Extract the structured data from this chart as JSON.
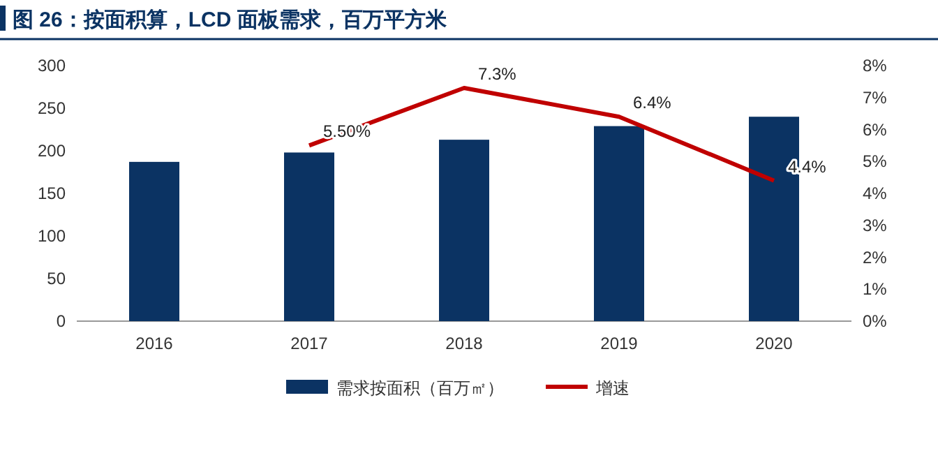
{
  "chart_data": {
    "type": "bar",
    "title": "图 26：按面积算，LCD 面板需求，百万平方米",
    "categories": [
      "2016",
      "2017",
      "2018",
      "2019",
      "2020"
    ],
    "series": [
      {
        "name": "需求按面积（百万㎡）",
        "color": "#0b3363",
        "values": [
          187,
          198,
          213,
          229,
          240
        ]
      },
      {
        "name": "增速",
        "type": "line",
        "axis": "y2",
        "color": "#c00000",
        "values": [
          null,
          5.5,
          7.3,
          6.4,
          4.4
        ],
        "value_labels": [
          null,
          "5.50%",
          "7.3%",
          "6.4%",
          "4.4%"
        ]
      }
    ],
    "ylim": [
      0,
      300
    ],
    "yticks": [
      0,
      50,
      100,
      150,
      200,
      250,
      300
    ],
    "y2lim": [
      0,
      8
    ],
    "y2ticks": [
      {
        "value": 0,
        "label": "0%"
      },
      {
        "value": 1,
        "label": "1%"
      },
      {
        "value": 2,
        "label": "2%"
      },
      {
        "value": 3,
        "label": "3%"
      },
      {
        "value": 4,
        "label": "4%"
      },
      {
        "value": 5,
        "label": "5%"
      },
      {
        "value": 6,
        "label": "6%"
      },
      {
        "value": 7,
        "label": "7%"
      },
      {
        "value": 8,
        "label": "8%"
      }
    ],
    "legend": "bottom",
    "grid": false
  }
}
